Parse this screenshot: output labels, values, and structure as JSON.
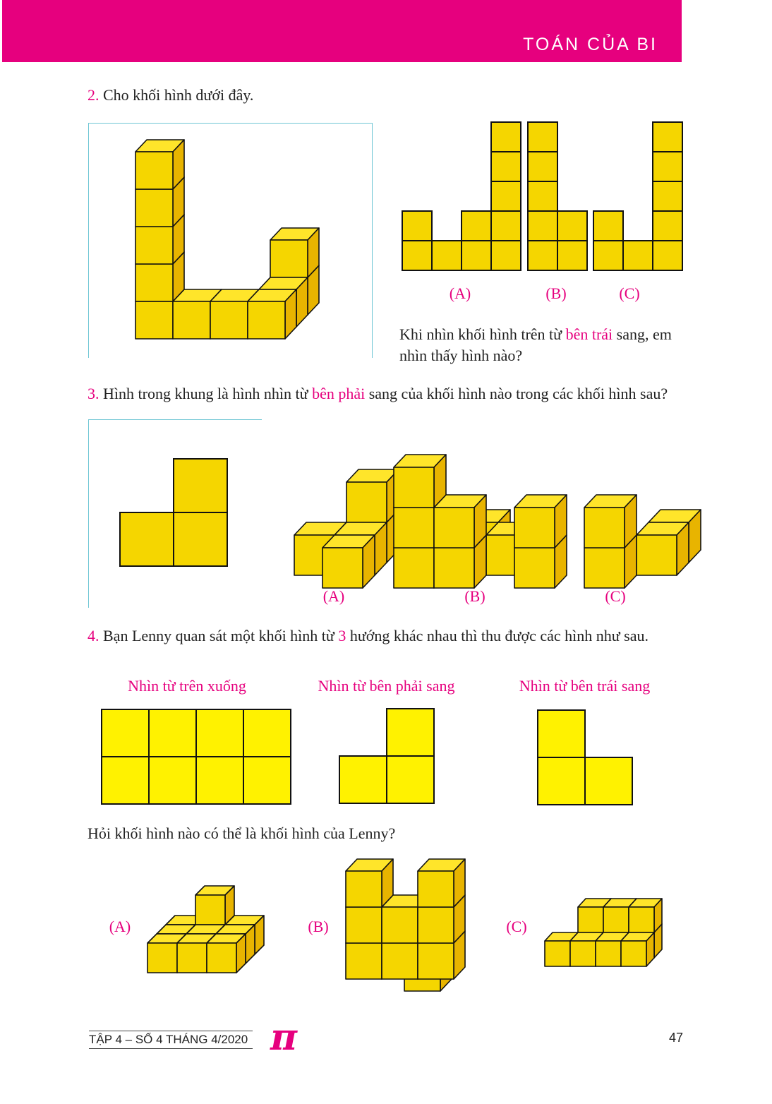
{
  "header": {
    "title": "TOÁN CỦA BI",
    "color": "#e6007e"
  },
  "colors": {
    "accent": "#e6007e",
    "cube_front": "#f5d600",
    "cube_top": "#ffe52a",
    "cube_side": "#e8b400",
    "view_fill": "#fff200"
  },
  "q2": {
    "number": "2.",
    "text": "Cho khối hình dưới đây.",
    "options": [
      "(A)",
      "(B)",
      "(C)"
    ],
    "question_pre": "Khi nhìn khối hình trên từ ",
    "question_highlight": "bên trái",
    "question_post": " sang, em nhìn thấy hình nào?"
  },
  "q3": {
    "number": "3.",
    "text_pre": "Hình trong khung là hình nhìn từ ",
    "text_highlight": "bên phải",
    "text_post": " sang của khối hình nào trong các khối hình sau?",
    "options": [
      "(A)",
      "(B)",
      "(C)"
    ]
  },
  "q4": {
    "number": "4.",
    "text_pre": "Bạn Lenny quan sát một khối hình từ ",
    "text_highlight": "3",
    "text_post": " hướng khác nhau thì thu được các hình như sau.",
    "views": [
      "Nhìn từ trên xuống",
      "Nhìn từ bên phải sang",
      "Nhìn từ bên trái sang"
    ],
    "question": "Hỏi khối hình nào có thể là khối hình của Lenny?",
    "options": [
      "(A)",
      "(B)",
      "(C)"
    ]
  },
  "footer": {
    "issue": "TẬP 4 – SỐ 4 THÁNG 4/2020",
    "logo": "π",
    "page": "47"
  }
}
